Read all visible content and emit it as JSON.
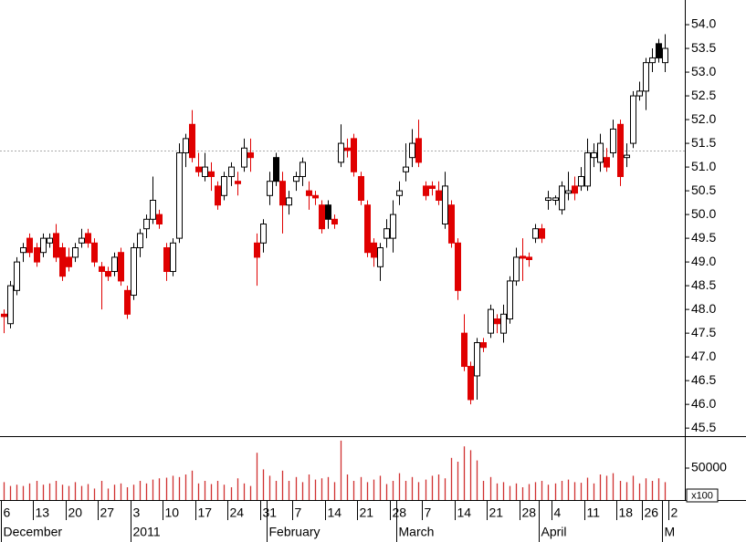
{
  "chart_data": {
    "type": "candlestick",
    "categories": [
      "6",
      null,
      null,
      null,
      null,
      "13",
      null,
      null,
      null,
      null,
      "20",
      null,
      null,
      null,
      null,
      "27",
      null,
      null,
      null,
      null,
      "3",
      null,
      null,
      null,
      null,
      "10",
      null,
      null,
      null,
      null,
      "17",
      null,
      null,
      null,
      null,
      "24",
      null,
      null,
      null,
      null,
      "31",
      null,
      null,
      null,
      null,
      "7",
      null,
      null,
      null,
      null,
      "14",
      null,
      null,
      null,
      null,
      "21",
      null,
      null,
      null,
      null,
      "28",
      null,
      null,
      null,
      null,
      "7",
      null,
      null,
      null,
      null,
      "14",
      null,
      null,
      null,
      null,
      "21",
      null,
      null,
      null,
      null,
      "28",
      null,
      null,
      null,
      null,
      "4",
      null,
      null,
      null,
      null,
      "11",
      null,
      null,
      null,
      null,
      "18",
      null,
      null,
      null,
      "26",
      null,
      null,
      null,
      "2"
    ],
    "month_categories": [
      "December",
      null,
      null,
      null,
      null,
      null,
      null,
      null,
      null,
      null,
      null,
      null,
      null,
      null,
      null,
      null,
      null,
      null,
      null,
      null,
      "2011",
      null,
      null,
      null,
      null,
      null,
      null,
      null,
      null,
      null,
      null,
      null,
      null,
      null,
      null,
      null,
      null,
      null,
      null,
      null,
      null,
      "February",
      null,
      null,
      null,
      null,
      null,
      null,
      null,
      null,
      null,
      null,
      null,
      null,
      null,
      null,
      null,
      null,
      null,
      null,
      null,
      "March",
      null,
      null,
      null,
      null,
      null,
      null,
      null,
      null,
      null,
      null,
      null,
      null,
      null,
      null,
      null,
      null,
      null,
      null,
      null,
      null,
      null,
      "April",
      null,
      null,
      null,
      null,
      null,
      null,
      null,
      null,
      null,
      null,
      null,
      null,
      null,
      null,
      null,
      null,
      null,
      null,
      "M"
    ],
    "open": [
      47.9,
      47.7,
      48.4,
      49.2,
      49.5,
      49.3,
      49.2,
      49.4,
      49.6,
      49.3,
      49.1,
      49.1,
      49.4,
      49.6,
      49.4,
      48.9,
      48.8,
      48.8,
      49.2,
      48.4,
      48.3,
      49.3,
      49.7,
      49.9,
      50.0,
      49.3,
      48.8,
      49.5,
      51.3,
      51.9,
      51.0,
      50.8,
      50.9,
      50.6,
      50.4,
      50.8,
      50.7,
      51.0,
      51.3,
      49.4,
      49.4,
      50.4,
      51.2,
      50.7,
      50.2,
      50.7,
      50.8,
      50.5,
      50.4,
      50.2,
      50.2,
      49.9,
      51.1,
      51.4,
      51.6,
      50.8,
      50.2,
      49.4,
      48.9,
      49.5,
      49.5,
      50.4,
      50.9,
      51.2,
      51.6,
      50.6,
      50.6,
      50.5,
      49.8,
      50.2,
      49.4,
      47.5,
      46.8,
      46.6,
      47.3,
      47.5,
      47.8,
      47.5,
      47.8,
      48.6,
      49.12,
      49.1,
      49.5,
      49.7,
      50.3,
      50.3,
      50.1,
      50.45,
      50.6,
      50.6,
      50.6,
      51.2,
      51.1,
      51.2,
      51.3,
      51.9,
      51.2,
      51.5,
      52.5,
      52.6,
      53.2,
      53.6,
      53.2,
      null
    ],
    "high": [
      48.0,
      48.6,
      49.1,
      49.4,
      49.6,
      49.4,
      49.6,
      49.6,
      49.8,
      49.4,
      49.3,
      49.4,
      49.7,
      49.7,
      49.5,
      49.0,
      48.9,
      49.2,
      49.3,
      48.5,
      49.4,
      49.7,
      50.0,
      50.8,
      50.1,
      49.4,
      49.5,
      51.5,
      51.7,
      52.2,
      51.3,
      51.3,
      51.1,
      50.7,
      50.9,
      51.1,
      50.9,
      51.6,
      51.6,
      49.6,
      49.9,
      50.9,
      51.3,
      50.9,
      50.5,
      50.9,
      51.2,
      50.7,
      50.5,
      50.3,
      50.3,
      50.0,
      51.9,
      51.6,
      51.7,
      50.9,
      50.3,
      49.5,
      49.4,
      49.9,
      50.3,
      50.7,
      51.5,
      51.8,
      52.0,
      50.7,
      50.7,
      50.7,
      50.9,
      50.3,
      49.5,
      47.9,
      46.9,
      47.4,
      47.4,
      48.1,
      47.9,
      48.1,
      48.7,
      49.3,
      49.5,
      49.2,
      49.8,
      49.8,
      50.5,
      50.4,
      50.7,
      50.9,
      50.8,
      51.0,
      51.6,
      51.5,
      51.7,
      51.4,
      52.0,
      52.0,
      51.5,
      52.6,
      52.8,
      53.3,
      53.5,
      53.7,
      53.8,
      null
    ],
    "low": [
      47.5,
      47.6,
      48.3,
      49.0,
      49.1,
      48.9,
      49.1,
      49.3,
      49.0,
      48.6,
      48.8,
      49.0,
      49.3,
      49.3,
      48.9,
      48.0,
      48.6,
      48.7,
      48.5,
      47.8,
      48.2,
      49.1,
      49.5,
      49.8,
      49.7,
      48.6,
      48.7,
      49.4,
      51.0,
      51.1,
      50.8,
      50.7,
      50.5,
      50.1,
      50.3,
      50.6,
      50.4,
      50.9,
      50.9,
      48.5,
      49.2,
      50.2,
      50.6,
      49.6,
      50.0,
      50.5,
      50.6,
      50.1,
      50.2,
      49.6,
      49.7,
      49.7,
      51.0,
      51.2,
      50.8,
      50.2,
      49.1,
      48.9,
      48.6,
      49.3,
      49.2,
      50.2,
      50.7,
      51.0,
      51.0,
      50.3,
      50.4,
      50.2,
      49.7,
      49.3,
      48.2,
      46.7,
      46.0,
      46.1,
      47.1,
      47.4,
      47.5,
      47.3,
      47.7,
      48.5,
      48.6,
      48.9,
      49.4,
      49.4,
      50.1,
      50.2,
      50.0,
      50.3,
      50.3,
      50.5,
      50.5,
      51.0,
      50.9,
      50.9,
      51.2,
      50.6,
      51.0,
      51.4,
      52.4,
      52.2,
      53.0,
      53.2,
      53.0,
      null
    ],
    "close": [
      47.85,
      48.5,
      49.0,
      49.3,
      49.2,
      49.0,
      49.5,
      49.5,
      49.1,
      48.7,
      48.9,
      49.3,
      49.5,
      49.4,
      49.0,
      48.8,
      48.7,
      49.1,
      48.6,
      47.9,
      49.3,
      49.6,
      49.9,
      50.3,
      49.8,
      48.8,
      49.4,
      51.3,
      51.6,
      51.2,
      50.9,
      51.0,
      50.8,
      50.2,
      50.8,
      51.0,
      50.65,
      51.4,
      51.2,
      49.1,
      49.8,
      50.7,
      50.7,
      50.2,
      50.35,
      50.8,
      51.1,
      50.4,
      50.35,
      49.7,
      49.9,
      49.8,
      51.5,
      51.35,
      50.9,
      50.3,
      49.2,
      49.1,
      49.3,
      49.7,
      50.0,
      50.5,
      51.0,
      51.5,
      51.1,
      50.4,
      50.55,
      50.3,
      50.6,
      49.4,
      48.4,
      46.8,
      46.1,
      47.3,
      47.2,
      48.0,
      47.7,
      47.9,
      48.6,
      49.1,
      49.08,
      49.05,
      49.7,
      49.5,
      50.35,
      50.35,
      50.6,
      50.5,
      50.45,
      50.8,
      51.3,
      51.3,
      51.5,
      51.0,
      51.8,
      50.8,
      51.25,
      52.5,
      52.6,
      53.2,
      53.3,
      53.3,
      53.5,
      null
    ],
    "colors": [
      "#e00000",
      "#ffffff",
      "#ffffff",
      "#ffffff",
      "#e00000",
      "#e00000",
      "#ffffff",
      "#ffffff",
      "#e00000",
      "#e00000",
      "#e00000",
      "#ffffff",
      "#ffffff",
      "#e00000",
      "#e00000",
      "#e00000",
      "#e00000",
      "#ffffff",
      "#e00000",
      "#e00000",
      "#ffffff",
      "#ffffff",
      "#ffffff",
      "#ffffff",
      "#e00000",
      "#e00000",
      "#ffffff",
      "#ffffff",
      "#ffffff",
      "#e00000",
      "#e00000",
      "#ffffff",
      "#e00000",
      "#e00000",
      "#ffffff",
      "#ffffff",
      "#e00000",
      "#ffffff",
      "#e00000",
      "#e00000",
      "#ffffff",
      "#ffffff",
      "#000000",
      "#e00000",
      "#ffffff",
      "#ffffff",
      "#ffffff",
      "#e00000",
      "#e00000",
      "#e00000",
      "#000000",
      "#e00000",
      "#ffffff",
      "#e00000",
      "#e00000",
      "#e00000",
      "#e00000",
      "#e00000",
      "#ffffff",
      "#ffffff",
      "#ffffff",
      "#ffffff",
      "#ffffff",
      "#ffffff",
      "#e00000",
      "#e00000",
      "#e00000",
      "#e00000",
      "#ffffff",
      "#e00000",
      "#e00000",
      "#e00000",
      "#e00000",
      "#ffffff",
      "#e00000",
      "#ffffff",
      "#e00000",
      "#ffffff",
      "#ffffff",
      "#ffffff",
      "#e00000",
      "#e00000",
      "#ffffff",
      "#e00000",
      "#ffffff",
      "#ffffff",
      "#ffffff",
      "#ffffff",
      "#e00000",
      "#ffffff",
      "#ffffff",
      "#ffffff",
      "#ffffff",
      "#e00000",
      "#ffffff",
      "#e00000",
      "#ffffff",
      "#ffffff",
      "#ffffff",
      "#ffffff",
      "#ffffff",
      "#000000",
      "#ffffff",
      null
    ],
    "volume": [
      28000,
      22000,
      24000,
      22000,
      26000,
      30000,
      24000,
      26000,
      30000,
      24000,
      22000,
      28000,
      22000,
      25000,
      18000,
      30000,
      18000,
      24000,
      26000,
      20000,
      24000,
      30000,
      26000,
      32000,
      34000,
      35000,
      38000,
      36000,
      40000,
      46000,
      26000,
      30000,
      25000,
      30000,
      24000,
      20000,
      34000,
      26000,
      22000,
      74000,
      48000,
      38000,
      30000,
      46000,
      30000,
      36000,
      28000,
      40000,
      32000,
      34000,
      36000,
      28000,
      93000,
      40000,
      30000,
      36000,
      28000,
      32000,
      38000,
      25000,
      30000,
      42000,
      30000,
      36000,
      28000,
      32000,
      38000,
      40000,
      34000,
      66000,
      60000,
      84000,
      78000,
      62000,
      30000,
      36000,
      26000,
      28000,
      22000,
      26000,
      20000,
      25000,
      28000,
      30000,
      24000,
      26000,
      30000,
      32000,
      28000,
      27000,
      35000,
      26000,
      40000,
      38000,
      42000,
      30000,
      28000,
      38000,
      26000,
      34000,
      30000,
      34000,
      28000,
      null
    ],
    "volume_color": "#d03030",
    "ylim": [
      45.33,
      54.52
    ],
    "yticks": [
      {
        "value": 45.5,
        "label": "45.5"
      },
      {
        "value": 46,
        "label": "46.0"
      },
      {
        "value": 46.5,
        "label": "46.5"
      },
      {
        "value": 47,
        "label": "47.0"
      },
      {
        "value": 47.5,
        "label": "47.5"
      },
      {
        "value": 48,
        "label": "48.0"
      },
      {
        "value": 48.5,
        "label": "48.5"
      },
      {
        "value": 49,
        "label": "49.0"
      },
      {
        "value": 49.5,
        "label": "49.5"
      },
      {
        "value": 50,
        "label": "50.0"
      },
      {
        "value": 50.5,
        "label": "50.5"
      },
      {
        "value": 51,
        "label": "51.0"
      },
      {
        "value": 51.5,
        "label": "51.5"
      },
      {
        "value": 52,
        "label": "52.0"
      },
      {
        "value": 52.5,
        "label": "52.5"
      },
      {
        "value": 53,
        "label": "53.0"
      },
      {
        "value": 53.5,
        "label": "53.5"
      },
      {
        "value": 54,
        "label": "54.0"
      }
    ],
    "reference_line": 51.35,
    "volume_ylim": [
      0,
      100000
    ],
    "volume_yticks": [
      50000
    ],
    "volume_unit_label": "x100"
  }
}
